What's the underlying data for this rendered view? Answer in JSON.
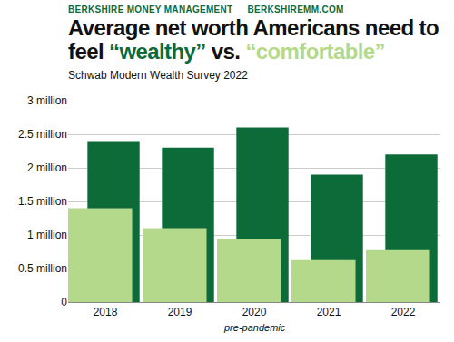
{
  "chart_data": {
    "type": "bar",
    "header": [
      "BERKSHIRE MONEY MANAGEMENT",
      "BERKSHIREMM.COM"
    ],
    "title": "Average net worth Americans need to feel “wealthy” vs. “comfortable”",
    "subtitle": "Schwab Modern Wealth Survey 2022",
    "categories": [
      "2018",
      "2019",
      "2020",
      "2021",
      "2022"
    ],
    "series": [
      {
        "name": "wealthy",
        "color": "#0d6b3a",
        "values": [
          2.4,
          2.3,
          2.6,
          1.9,
          2.2
        ]
      },
      {
        "name": "comfortable",
        "color": "#b5d98a",
        "values": [
          1.4,
          1.1,
          0.934,
          0.624,
          0.774
        ]
      }
    ],
    "ylim": [
      0,
      3
    ],
    "yticks": [
      0,
      {
        "value": 0.5,
        "label": "0.5 million"
      },
      {
        "value": 1,
        "label": "1 million"
      },
      {
        "value": 1.5,
        "label": "1.5 million"
      },
      {
        "value": 2,
        "label": "2 million"
      },
      {
        "value": 2.5,
        "label": "2.5 million"
      },
      {
        "value": 3,
        "label": "3 million"
      }
    ],
    "grid": true,
    "annotations": [
      {
        "category": "2020",
        "text": "pre-pandemic"
      }
    ]
  }
}
